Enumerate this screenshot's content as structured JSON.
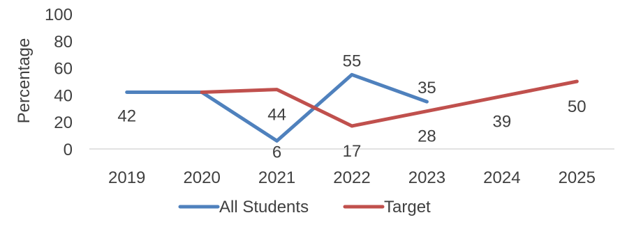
{
  "chart_data": {
    "type": "line",
    "title": "",
    "xlabel": "",
    "ylabel": "Percentage",
    "ylim": [
      0,
      100
    ],
    "yticks": [
      "0",
      "20",
      "40",
      "60",
      "80",
      "100"
    ],
    "categories": [
      "2019",
      "2020",
      "2021",
      "2022",
      "2023",
      "2024",
      "2025"
    ],
    "grid": false,
    "legend_position": "bottom",
    "series": [
      {
        "name": "All Students",
        "color": "#4f81bd",
        "values": [
          42,
          42,
          6,
          55,
          35,
          null,
          null
        ],
        "labels": [
          "42",
          null,
          "6",
          "55",
          "35",
          null,
          null
        ]
      },
      {
        "name": "Target",
        "color": "#c0504d",
        "values": [
          null,
          42,
          44,
          17,
          28,
          39,
          50
        ],
        "labels": [
          null,
          null,
          "44",
          "17",
          "28",
          "39",
          "50"
        ]
      }
    ]
  }
}
